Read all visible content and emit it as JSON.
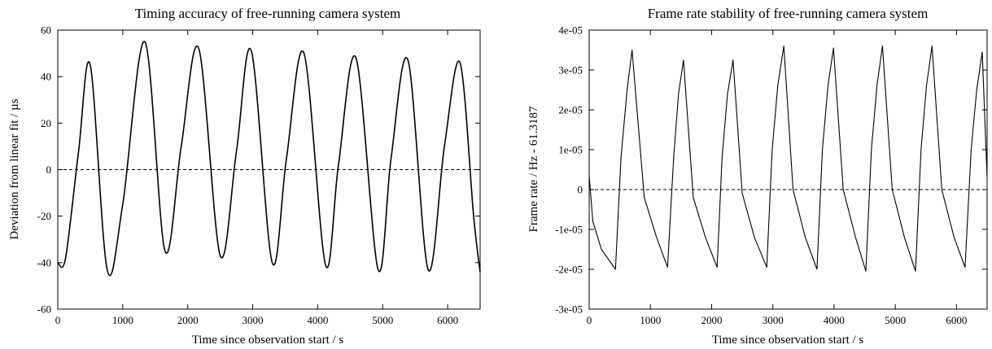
{
  "chart_data": [
    {
      "type": "line",
      "title": "Timing accuracy of free-running camera system",
      "xlabel": "Time since observation start / s",
      "ylabel": "Deviation from linear fit / µs",
      "xlim": [
        0,
        6500
      ],
      "ylim": [
        -60,
        60
      ],
      "xticks": [
        0,
        1000,
        2000,
        3000,
        4000,
        5000,
        6000
      ],
      "xtick_labels": [
        "0",
        "1000",
        "2000",
        "3000",
        "4000",
        "5000",
        "6000"
      ],
      "yticks": [
        -60,
        -40,
        -20,
        0,
        20,
        40,
        60
      ],
      "ytick_labels": [
        "-60",
        "-40",
        "-20",
        "0",
        "20",
        "40",
        "60"
      ],
      "grid": false,
      "reference_line": {
        "y": 0,
        "style": "dashed"
      },
      "series": [
        {
          "x": [
            0,
            120,
            320,
            500,
            760,
            1000,
            1340,
            1650,
            1900,
            2170,
            2500,
            2750,
            2980,
            3300,
            3520,
            3790,
            4120,
            4320,
            4590,
            4930,
            5130,
            5390,
            5700,
            5950,
            6190,
            6400,
            6500
          ],
          "y": [
            -40,
            -38,
            8,
            45,
            -43,
            -15,
            55,
            -35,
            10,
            52,
            -37,
            8,
            51,
            -40,
            5,
            50,
            -41,
            2,
            48,
            -43,
            5,
            47,
            -43,
            10,
            46,
            -20,
            -44
          ]
        }
      ]
    },
    {
      "type": "line",
      "title": "Frame rate stability of free-running camera system",
      "xlabel": "Time since observation start / s",
      "ylabel": "Frame rate / Hz - 61.3187",
      "xlim": [
        0,
        6500
      ],
      "ylim": [
        -3e-05,
        4e-05
      ],
      "xticks": [
        0,
        1000,
        2000,
        3000,
        4000,
        5000,
        6000
      ],
      "xtick_labels": [
        "0",
        "1000",
        "2000",
        "3000",
        "4000",
        "5000",
        "6000"
      ],
      "yticks": [
        -3e-05,
        -2e-05,
        -1e-05,
        0,
        1e-05,
        2e-05,
        3e-05,
        4e-05
      ],
      "ytick_labels": [
        "-3e-05",
        "-2e-05",
        "-1e-05",
        "0",
        "1e-05",
        "2e-05",
        "3e-05",
        "4e-05"
      ],
      "grid": false,
      "reference_line": {
        "y": 0,
        "style": "dashed"
      },
      "series": [
        {
          "x": [
            0,
            60,
            200,
            430,
            520,
            620,
            700,
            900,
            1100,
            1280,
            1380,
            1460,
            1540,
            1700,
            1900,
            2090,
            2170,
            2260,
            2350,
            2500,
            2700,
            2900,
            2990,
            3080,
            3180,
            3330,
            3530,
            3720,
            3810,
            3900,
            3990,
            4150,
            4350,
            4520,
            4610,
            4700,
            4790,
            4950,
            5150,
            5330,
            5420,
            5510,
            5600,
            5760,
            5960,
            6140,
            6240,
            6330,
            6420,
            6500
          ],
          "y": [
            3.5e-06,
            -8e-06,
            -1.5e-05,
            -2e-05,
            8e-06,
            2.5e-05,
            3.5e-05,
            -2e-06,
            -1.2e-05,
            -1.95e-05,
            8e-06,
            2.4e-05,
            3.25e-05,
            -2e-06,
            -1.2e-05,
            -1.95e-05,
            8e-06,
            2.4e-05,
            3.25e-05,
            -1e-06,
            -1.2e-05,
            -1.95e-05,
            1e-05,
            2.6e-05,
            3.6e-05,
            0,
            -1.2e-05,
            -2e-05,
            1e-05,
            2.6e-05,
            3.55e-05,
            0,
            -1.2e-05,
            -2.05e-05,
            1e-05,
            2.6e-05,
            3.6e-05,
            0,
            -1.2e-05,
            -2.05e-05,
            1e-05,
            2.6e-05,
            3.6e-05,
            0,
            -1.2e-05,
            -1.95e-05,
            1e-05,
            2.5e-05,
            3.45e-05,
            3e-06
          ]
        }
      ]
    }
  ]
}
